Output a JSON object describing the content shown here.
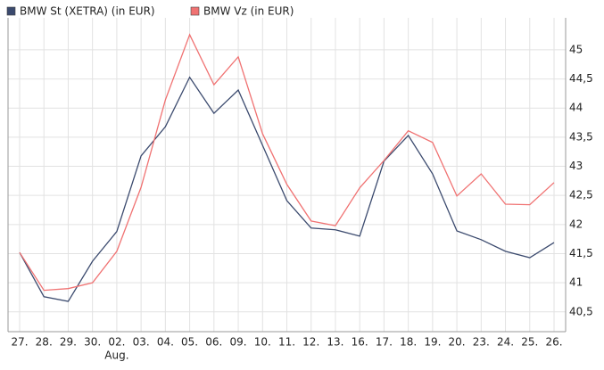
{
  "chart_data": {
    "type": "line",
    "categories": [
      "27.",
      "28.",
      "29.",
      "30.",
      "02.",
      "03.",
      "04.",
      "05.",
      "06.",
      "09.",
      "10.",
      "11.",
      "12.",
      "13.",
      "16.",
      "17.",
      "18.",
      "19.",
      "20.",
      "23.",
      "24.",
      "25.",
      "26."
    ],
    "month_labels": [
      {
        "category": "02.",
        "label": "Aug."
      }
    ],
    "series": [
      {
        "name": "BMW St (XETRA) (in EUR)",
        "color": "#3b4a6e",
        "values": [
          41.52,
          40.76,
          40.68,
          41.37,
          41.88,
          43.18,
          43.68,
          44.53,
          43.91,
          44.31,
          43.36,
          42.41,
          41.94,
          41.91,
          41.8,
          43.09,
          43.53,
          42.87,
          41.89,
          41.74,
          41.54,
          41.43,
          41.69
        ]
      },
      {
        "name": "BMW Vz (in EUR)",
        "color": "#f07272",
        "values": [
          41.52,
          40.87,
          40.9,
          41.0,
          41.54,
          42.64,
          44.14,
          45.26,
          44.4,
          44.88,
          43.56,
          42.69,
          42.06,
          41.98,
          42.63,
          43.1,
          43.61,
          43.41,
          42.49,
          42.87,
          42.35,
          42.34,
          42.72
        ]
      }
    ],
    "ylim": [
      40.16,
      45.55
    ],
    "yticks": [
      {
        "value": 40.5,
        "label": "40,5"
      },
      41,
      {
        "value": 41.5,
        "label": "41,5"
      },
      42,
      {
        "value": 42.5,
        "label": "42,5"
      },
      43,
      {
        "value": 43.5,
        "label": "43,5"
      },
      44,
      {
        "value": 44.5,
        "label": "44,5"
      },
      45
    ],
    "grid": true,
    "legend": "top"
  }
}
